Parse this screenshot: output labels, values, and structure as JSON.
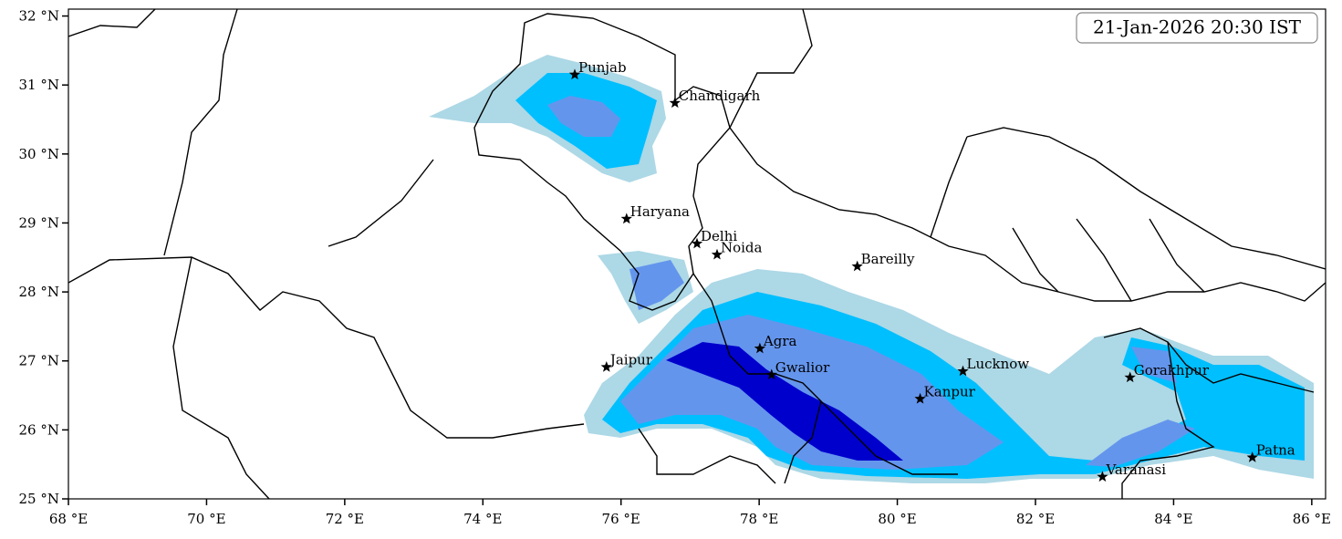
{
  "map": {
    "timestamp": "21-Jan-2026 20:30 IST",
    "xlim": [
      68,
      86.2
    ],
    "ylim": [
      25,
      32.1
    ],
    "xticks": [
      {
        "value": 68,
        "label": "68 °E"
      },
      {
        "value": 70,
        "label": "70 °E"
      },
      {
        "value": 72,
        "label": "72 °E"
      },
      {
        "value": 74,
        "label": "74 °E"
      },
      {
        "value": 76,
        "label": "76 °E"
      },
      {
        "value": 78,
        "label": "78 °E"
      },
      {
        "value": 80,
        "label": "80 °E"
      },
      {
        "value": 82,
        "label": "82 °E"
      },
      {
        "value": 84,
        "label": "84 °E"
      },
      {
        "value": 86,
        "label": "86 °E"
      }
    ],
    "yticks": [
      {
        "value": 25,
        "label": "25 °N"
      },
      {
        "value": 26,
        "label": "26 °N"
      },
      {
        "value": 27,
        "label": "27 °N"
      },
      {
        "value": 28,
        "label": "28 °N"
      },
      {
        "value": 29,
        "label": "29 °N"
      },
      {
        "value": 30,
        "label": "30 °N"
      },
      {
        "value": 31,
        "label": "31 °N"
      },
      {
        "value": 32,
        "label": "32 °N"
      }
    ],
    "cities": [
      {
        "name": "Punjab",
        "lon": 75.33,
        "lat": 31.15
      },
      {
        "name": "Chandigarh",
        "lon": 76.78,
        "lat": 30.74
      },
      {
        "name": "Haryana",
        "lon": 76.08,
        "lat": 29.06
      },
      {
        "name": "Delhi",
        "lon": 77.1,
        "lat": 28.7
      },
      {
        "name": "Noida",
        "lon": 77.39,
        "lat": 28.54
      },
      {
        "name": "Bareilly",
        "lon": 79.42,
        "lat": 28.37
      },
      {
        "name": "Jaipur",
        "lon": 75.79,
        "lat": 26.91
      },
      {
        "name": "Agra",
        "lon": 78.01,
        "lat": 27.18
      },
      {
        "name": "Gwalior",
        "lon": 78.18,
        "lat": 26.8
      },
      {
        "name": "Kanpur",
        "lon": 80.33,
        "lat": 26.45
      },
      {
        "name": "Lucknow",
        "lon": 80.95,
        "lat": 26.85
      },
      {
        "name": "Gorakhpur",
        "lon": 83.37,
        "lat": 26.76
      },
      {
        "name": "Varanasi",
        "lon": 82.97,
        "lat": 25.32
      },
      {
        "name": "Patna",
        "lon": 85.14,
        "lat": 25.6
      }
    ]
  }
}
